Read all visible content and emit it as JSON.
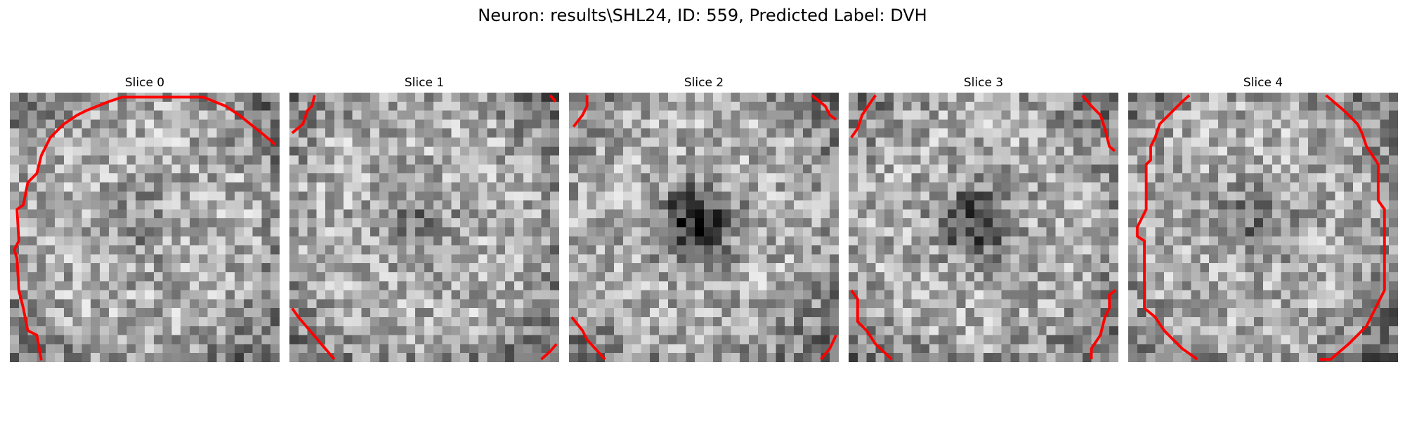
{
  "figure": {
    "title": "Neuron: results\\SHL24, ID: 559, Predicted Label: DVH"
  },
  "panels": [
    {
      "title": "Slice 0",
      "dark_core": 0.18,
      "contour_color": "#ff0000"
    },
    {
      "title": "Slice 1",
      "dark_core": 0.28,
      "contour_color": "#ff0000"
    },
    {
      "title": "Slice 2",
      "dark_core": 0.72,
      "contour_color": "#ff0000"
    },
    {
      "title": "Slice 3",
      "dark_core": 0.55,
      "contour_color": "#ff0000"
    },
    {
      "title": "Slice 4",
      "dark_core": 0.32,
      "contour_color": "#ff0000"
    }
  ],
  "colormap": "gray"
}
